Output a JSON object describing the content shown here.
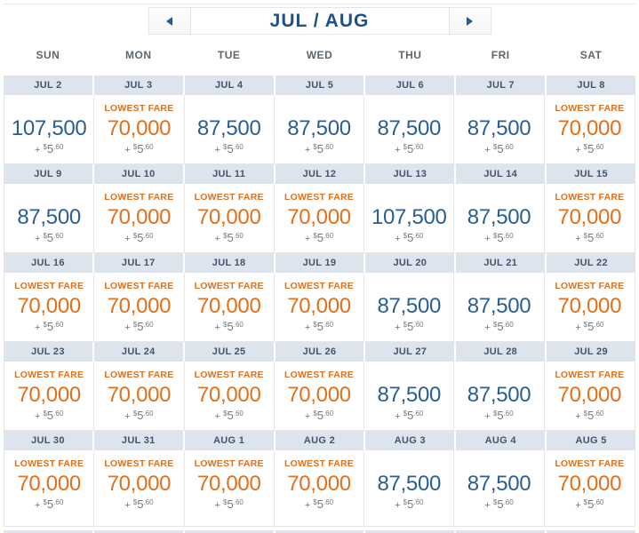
{
  "colors": {
    "title_blue": "#1d5289",
    "fare_blue": "#2a5e92",
    "lowest_fare_orange": "#e0701c",
    "date_strip_bg": "#dde4ee",
    "date_text": "#44546a",
    "weekday_text": "#5c6770",
    "tax_text": "#76797c",
    "border": "#e6e6e6",
    "arrow_blue": "#1d5a9e",
    "button_bg": "#f6f6f6"
  },
  "header": {
    "title": "JUL / AUG",
    "prev_icon": "left-triangle",
    "next_icon": "right-triangle"
  },
  "weekdays": [
    "SUN",
    "MON",
    "TUE",
    "WED",
    "THU",
    "FRI",
    "SAT"
  ],
  "lowest_fare_label": "LOWEST FARE",
  "taxes": {
    "plus": "+ ",
    "currency": "$",
    "whole": "5",
    "cents": ".60"
  },
  "weeks": [
    {
      "days": [
        {
          "date": "JUL 2",
          "miles": "107,500",
          "lowest_fare": false
        },
        {
          "date": "JUL 3",
          "miles": "70,000",
          "lowest_fare": true
        },
        {
          "date": "JUL 4",
          "miles": "87,500",
          "lowest_fare": false
        },
        {
          "date": "JUL 5",
          "miles": "87,500",
          "lowest_fare": false
        },
        {
          "date": "JUL 6",
          "miles": "87,500",
          "lowest_fare": false
        },
        {
          "date": "JUL 7",
          "miles": "87,500",
          "lowest_fare": false
        },
        {
          "date": "JUL 8",
          "miles": "70,000",
          "lowest_fare": true
        }
      ]
    },
    {
      "days": [
        {
          "date": "JUL 9",
          "miles": "87,500",
          "lowest_fare": false
        },
        {
          "date": "JUL 10",
          "miles": "70,000",
          "lowest_fare": true
        },
        {
          "date": "JUL 11",
          "miles": "70,000",
          "lowest_fare": true
        },
        {
          "date": "JUL 12",
          "miles": "70,000",
          "lowest_fare": true
        },
        {
          "date": "JUL 13",
          "miles": "107,500",
          "lowest_fare": false
        },
        {
          "date": "JUL 14",
          "miles": "87,500",
          "lowest_fare": false
        },
        {
          "date": "JUL 15",
          "miles": "70,000",
          "lowest_fare": true
        }
      ]
    },
    {
      "days": [
        {
          "date": "JUL 16",
          "miles": "70,000",
          "lowest_fare": true
        },
        {
          "date": "JUL 17",
          "miles": "70,000",
          "lowest_fare": true
        },
        {
          "date": "JUL 18",
          "miles": "70,000",
          "lowest_fare": true
        },
        {
          "date": "JUL 19",
          "miles": "70,000",
          "lowest_fare": true
        },
        {
          "date": "JUL 20",
          "miles": "87,500",
          "lowest_fare": false
        },
        {
          "date": "JUL 21",
          "miles": "87,500",
          "lowest_fare": false
        },
        {
          "date": "JUL 22",
          "miles": "70,000",
          "lowest_fare": true
        }
      ]
    },
    {
      "days": [
        {
          "date": "JUL 23",
          "miles": "70,000",
          "lowest_fare": true
        },
        {
          "date": "JUL 24",
          "miles": "70,000",
          "lowest_fare": true
        },
        {
          "date": "JUL 25",
          "miles": "70,000",
          "lowest_fare": true
        },
        {
          "date": "JUL 26",
          "miles": "70,000",
          "lowest_fare": true
        },
        {
          "date": "JUL 27",
          "miles": "87,500",
          "lowest_fare": false
        },
        {
          "date": "JUL 28",
          "miles": "87,500",
          "lowest_fare": false
        },
        {
          "date": "JUL 29",
          "miles": "70,000",
          "lowest_fare": true
        }
      ]
    },
    {
      "days": [
        {
          "date": "JUL 30",
          "miles": "70,000",
          "lowest_fare": true
        },
        {
          "date": "JUL 31",
          "miles": "70,000",
          "lowest_fare": true
        },
        {
          "date": "AUG 1",
          "miles": "70,000",
          "lowest_fare": true
        },
        {
          "date": "AUG 2",
          "miles": "70,000",
          "lowest_fare": true
        },
        {
          "date": "AUG 3",
          "miles": "87,500",
          "lowest_fare": false
        },
        {
          "date": "AUG 4",
          "miles": "87,500",
          "lowest_fare": false
        },
        {
          "date": "AUG 5",
          "miles": "70,000",
          "lowest_fare": true
        }
      ]
    }
  ]
}
